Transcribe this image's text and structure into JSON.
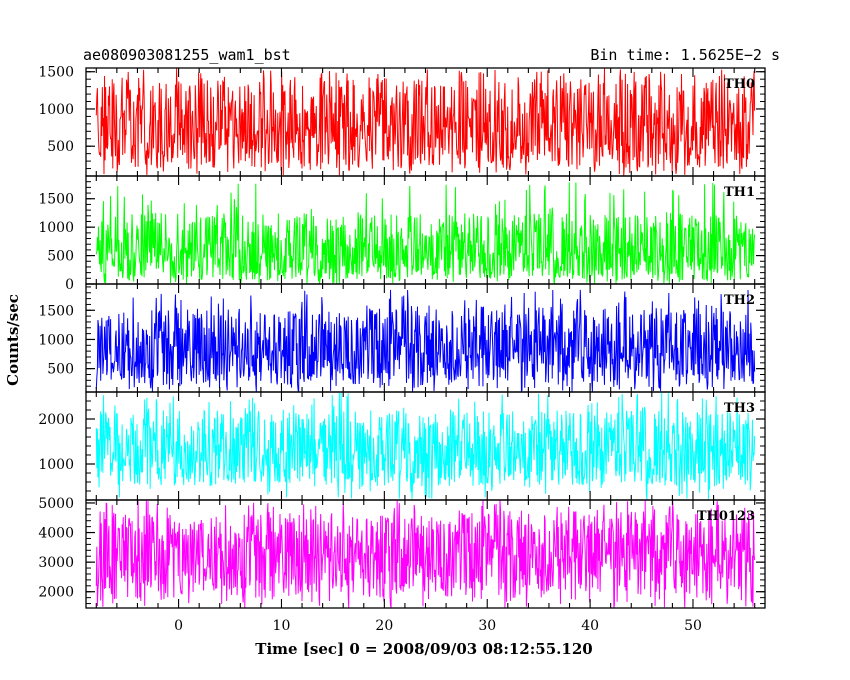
{
  "header": {
    "title": "ae080903081255_wam1_bst",
    "bin_time": "Bin time: 1.5625E−2 s"
  },
  "chart_data": {
    "type": "line",
    "xlabel": "Time [sec] 0 = 2008/09/03 08:12:55.120",
    "ylabel": "Counts/sec",
    "xlim": [
      -9,
      57
    ],
    "x_range": [
      -8,
      56
    ],
    "x_ticks": [
      0,
      10,
      20,
      30,
      40,
      50
    ],
    "panels": [
      {
        "name": "TH0",
        "color": "#ff0000",
        "ylim": [
          100,
          1550
        ],
        "y_ticks": [
          500,
          1000,
          1500
        ],
        "mean": 700,
        "low": 200,
        "high": 1400,
        "spike_max": 1550
      },
      {
        "name": "TH1",
        "color": "#00ff00",
        "ylim": [
          0,
          1900
        ],
        "y_ticks": [
          0,
          500,
          1000,
          1500
        ],
        "mean": 550,
        "low": 80,
        "high": 1250,
        "spike_max": 1800
      },
      {
        "name": "TH2",
        "color": "#0000ff",
        "ylim": [
          100,
          1950
        ],
        "y_ticks": [
          500,
          1000,
          1500
        ],
        "mean": 780,
        "low": 220,
        "high": 1550,
        "spike_max": 1850
      },
      {
        "name": "TH3",
        "color": "#00ffff",
        "ylim": [
          200,
          2600
        ],
        "y_ticks": [
          1000,
          2000
        ],
        "mean": 1300,
        "low": 500,
        "high": 2200,
        "spike_max": 2600
      },
      {
        "name": "TH0123",
        "color": "#ff00ff",
        "ylim": [
          1450,
          5100
        ],
        "y_ticks": [
          2000,
          3000,
          4000,
          5000
        ],
        "mean": 3250,
        "low": 1800,
        "high": 4700,
        "spike_max": 5100
      }
    ]
  }
}
